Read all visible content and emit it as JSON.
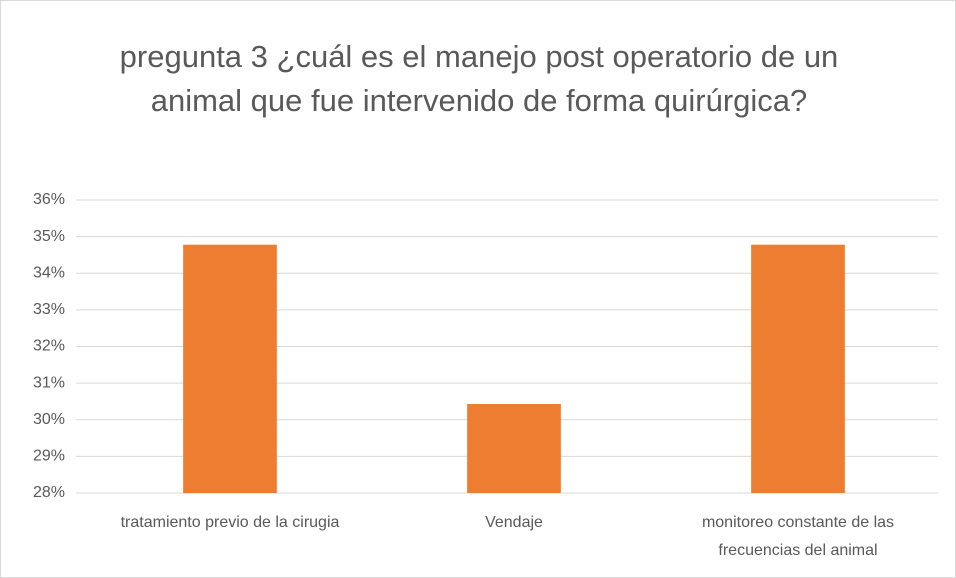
{
  "chart_data": {
    "type": "bar",
    "title": "pregunta 3  ¿cuál es el manejo post operatorio de un animal que fue intervenido de forma quirúrgica?",
    "categories": [
      "tratamiento previo de la cirugia",
      "Vendaje",
      "monitoreo constante de las frecuencias del animal"
    ],
    "values": [
      34.78,
      30.43,
      34.78
    ],
    "color": "#ed7d31",
    "ylim": [
      28,
      36
    ],
    "yticks": [
      {
        "value": 28,
        "label": "28%"
      },
      {
        "value": 29,
        "label": "29%"
      },
      {
        "value": 30,
        "label": "30%"
      },
      {
        "value": 31,
        "label": "31%"
      },
      {
        "value": 32,
        "label": "32%"
      },
      {
        "value": 33,
        "label": "33%"
      },
      {
        "value": 34,
        "label": "34%"
      },
      {
        "value": 35,
        "label": "35%"
      },
      {
        "value": 36,
        "label": "36%"
      }
    ],
    "grid": true
  }
}
